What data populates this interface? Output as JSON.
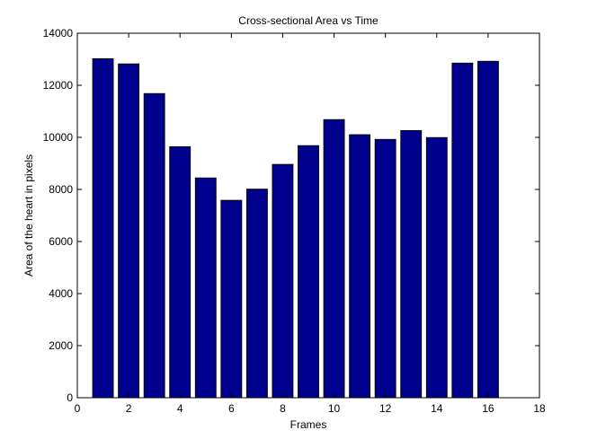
{
  "chart_data": {
    "type": "bar",
    "title": "Cross-sectional Area vs Time",
    "xlabel": "Frames",
    "ylabel": "Area of the heart in pixels",
    "x": [
      1,
      2,
      3,
      4,
      5,
      6,
      7,
      8,
      9,
      10,
      11,
      12,
      13,
      14,
      15,
      16
    ],
    "values": [
      13020,
      12820,
      11680,
      9640,
      8440,
      7580,
      8010,
      8960,
      9680,
      10680,
      10100,
      9920,
      10260,
      9990,
      12850,
      12920
    ],
    "xlim": [
      0,
      18
    ],
    "ylim": [
      0,
      14000
    ],
    "xticks": [
      "0",
      "2",
      "4",
      "6",
      "8",
      "10",
      "12",
      "14",
      "16",
      "18"
    ],
    "yticks": [
      "0",
      "2000",
      "4000",
      "6000",
      "8000",
      "10000",
      "12000",
      "14000"
    ],
    "bar_color": "#00008f",
    "grid": false,
    "legend": false
  }
}
